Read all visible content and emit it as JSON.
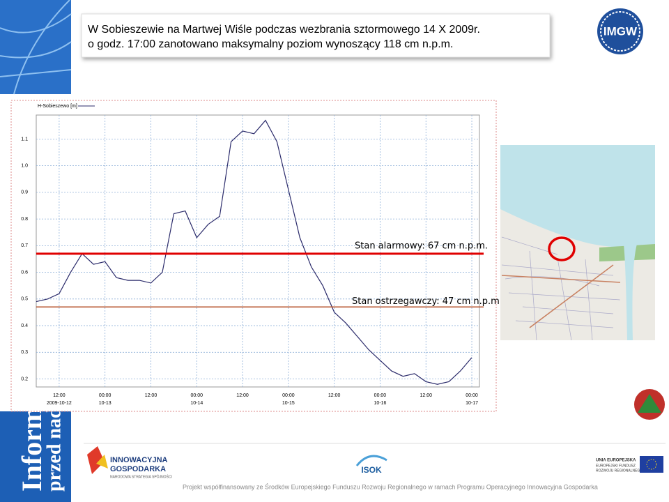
{
  "header": {
    "title_lines": [
      "W Sobieszewie na Martwej Wiśle podczas wezbrania sztormowego 14 X 2009r.",
      "o godz. 17:00 zanotowano maksymalny poziom wynoszący 118 cm n.p.m."
    ]
  },
  "logo": "IMGW",
  "side_text": [
    "Inform",
    "przed nad"
  ],
  "chart_data": {
    "type": "line",
    "x": [
      "2009-10-12T06:00",
      "2009-10-12T09:00",
      "2009-10-12T12:00",
      "2009-10-12T15:00",
      "2009-10-12T18:00",
      "2009-10-12T21:00",
      "2009-10-13T00:00",
      "2009-10-13T03:00",
      "2009-10-13T06:00",
      "2009-10-13T09:00",
      "2009-10-13T12:00",
      "2009-10-13T15:00",
      "2009-10-13T18:00",
      "2009-10-13T21:00",
      "2009-10-14T00:00",
      "2009-10-14T03:00",
      "2009-10-14T06:00",
      "2009-10-14T09:00",
      "2009-10-14T12:00",
      "2009-10-14T15:00",
      "2009-10-14T18:00",
      "2009-10-14T21:00",
      "2009-10-15T00:00",
      "2009-10-15T03:00",
      "2009-10-15T06:00",
      "2009-10-15T09:00",
      "2009-10-15T12:00",
      "2009-10-15T15:00",
      "2009-10-15T18:00",
      "2009-10-15T21:00",
      "2009-10-16T00:00",
      "2009-10-16T03:00",
      "2009-10-16T06:00",
      "2009-10-16T09:00",
      "2009-10-16T12:00",
      "2009-10-16T15:00",
      "2009-10-16T18:00",
      "2009-10-16T21:00",
      "2009-10-17T00:00"
    ],
    "series": [
      {
        "name": "H-Sobieszewo [m]",
        "color": "#2b2b6b",
        "values": [
          0.49,
          0.5,
          0.52,
          0.6,
          0.67,
          0.63,
          0.64,
          0.58,
          0.57,
          0.57,
          0.56,
          0.6,
          0.82,
          0.83,
          0.73,
          0.78,
          0.81,
          1.09,
          1.13,
          1.12,
          1.17,
          1.09,
          0.91,
          0.73,
          0.62,
          0.55,
          0.45,
          0.41,
          0.36,
          0.31,
          0.27,
          0.23,
          0.21,
          0.22,
          0.19,
          0.18,
          0.19,
          0.23,
          0.28
        ]
      }
    ],
    "xlim": [
      "2009-10-12T06:00",
      "2009-10-17T02:00"
    ],
    "xticks": [
      {
        "value": "2009-10-12T12:00",
        "label": "12:00"
      },
      {
        "value": "2009-10-13T00:00",
        "label": "00:00"
      },
      {
        "value": "2009-10-13T12:00",
        "label": "12:00"
      },
      {
        "value": "2009-10-14T00:00",
        "label": "00:00"
      },
      {
        "value": "2009-10-14T12:00",
        "label": "12:00"
      },
      {
        "value": "2009-10-15T00:00",
        "label": "00:00"
      },
      {
        "value": "2009-10-15T12:00",
        "label": "12:00"
      },
      {
        "value": "2009-10-16T00:00",
        "label": "00:00"
      },
      {
        "value": "2009-10-16T12:00",
        "label": "12:00"
      },
      {
        "value": "2009-10-17T00:00",
        "label": "00:00"
      }
    ],
    "x_date_labels": [
      {
        "value": "2009-10-12T12:00",
        "label": "2009-10-12"
      },
      {
        "value": "2009-10-13T00:00",
        "label": "10-13"
      },
      {
        "value": "2009-10-14T00:00",
        "label": "10-14"
      },
      {
        "value": "2009-10-15T00:00",
        "label": "10-15"
      },
      {
        "value": "2009-10-16T00:00",
        "label": "10-16"
      },
      {
        "value": "2009-10-17T00:00",
        "label": "10-17"
      }
    ],
    "ylim": [
      0.17,
      1.19
    ],
    "yticks": [
      0.2,
      0.3,
      0.4,
      0.5,
      0.6,
      0.7,
      0.8,
      0.9,
      {
        "value": 1,
        "label": "1.0"
      },
      1.1
    ],
    "grid": true,
    "thresholds": [
      {
        "value": 0.67,
        "label": "Stan alarmowy: 67 cm n.p.m.",
        "color": "#e00000"
      },
      {
        "value": 0.47,
        "label": "Stan ostrzegawczy: 47 cm n.p.m.",
        "color": "#b5512a"
      }
    ]
  },
  "footer": {
    "logo_left": [
      "INNOWACYJNA",
      "GOSPODARKA",
      "NARODOWA STRATEGIA SPÓJNOŚCI"
    ],
    "logo_center": "ISOK",
    "logo_right": [
      "UNIA EUROPEJSKA",
      "EUROPEJSKI FUNDUSZ",
      "ROZWOJU REGIONALNEGO"
    ],
    "note": "Projekt współfinansowany ze Środków Europejskiego Funduszu Rozwoju Regionalnego w ramach Programu Operacyjnego Innowacyjna Gospodarka"
  }
}
